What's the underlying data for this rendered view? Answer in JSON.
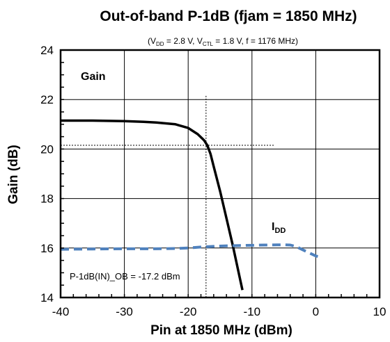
{
  "chart_data": {
    "type": "line",
    "title": "Out-of-band P-1dB (fjam = 1850 MHz)",
    "subtitle": {
      "vdd_label": "V",
      "vdd_sub": "DD",
      "vdd_value": " = 2.8 V, ",
      "vctl_label": "V",
      "vctl_sub": "CTL",
      "vctl_value": " = 1.8 V, f = 1176 MHz"
    },
    "xlabel": "Pin at 1850 MHz (dBm)",
    "ylabel": "Gain (dB)",
    "xlim": [
      -40,
      10
    ],
    "ylim": [
      14,
      24
    ],
    "xticks": [
      "-40",
      "-30",
      "-20",
      "-10",
      "0",
      "10"
    ],
    "yticks": [
      "14",
      "16",
      "18",
      "20",
      "22",
      "24"
    ],
    "grid": true,
    "series": [
      {
        "name": "Gain",
        "color": "#000000",
        "style": "solid",
        "x": [
          -40,
          -35,
          -30,
          -27,
          -25,
          -22,
          -20,
          -18.5,
          -17.5,
          -17,
          -16.5,
          -16,
          -15,
          -14,
          -13,
          -12,
          -11.5
        ],
        "y": [
          21.15,
          21.15,
          21.13,
          21.1,
          21.07,
          21.0,
          20.85,
          20.6,
          20.35,
          20.15,
          19.8,
          19.3,
          18.3,
          17.2,
          16.1,
          14.9,
          14.3
        ]
      },
      {
        "name": "I_DD",
        "color": "#4f81bd",
        "style": "dashed",
        "x": [
          -40,
          -35,
          -30,
          -25,
          -22,
          -20,
          -18,
          -15,
          -12,
          -10,
          -8,
          -6,
          -5,
          -4,
          -3,
          -2,
          0,
          1
        ],
        "y": [
          15.95,
          15.96,
          15.97,
          15.97,
          15.98,
          16.0,
          16.04,
          16.08,
          16.1,
          16.11,
          16.12,
          16.13,
          16.13,
          16.12,
          16.05,
          15.92,
          15.68,
          15.62
        ]
      }
    ],
    "annotations": {
      "gain_label": "Gain",
      "idd_label": "I",
      "idd_sub": "DD",
      "p1db_label": "P-1dB(IN)_OB = -17.2 dBm",
      "p1db_x": -17.2,
      "p1db_gain": 20.15
    }
  }
}
